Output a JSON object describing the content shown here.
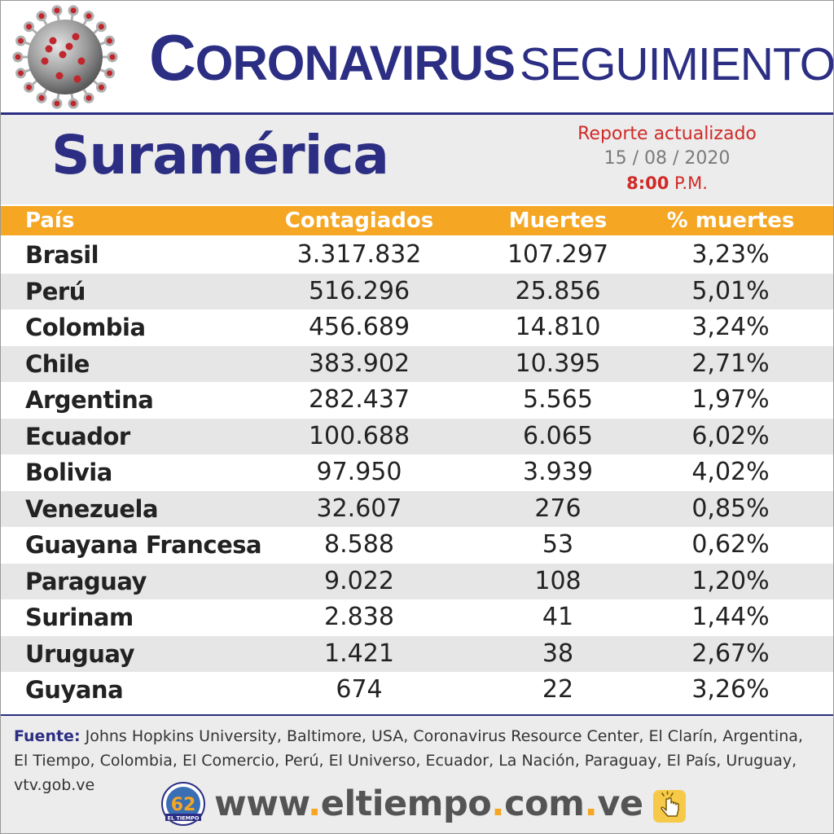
{
  "header": {
    "title_first_letter": "C",
    "title_rest": "ORONAVIRUS",
    "title_light": "SEGUIMIENTO",
    "virus_icon": "coronavirus-icon"
  },
  "subheader": {
    "region": "Suramérica",
    "report_label": "Reporte actualizado",
    "report_date": "15 / 08 / 2020",
    "report_time": "8:00",
    "report_ampm": "P.M."
  },
  "table": {
    "columns": [
      "País",
      "Contagiados",
      "Muertes",
      "% muertes"
    ],
    "rows": [
      {
        "country": "Brasil",
        "cases": "3.317.832",
        "deaths": "107.297",
        "pct": "3,23%"
      },
      {
        "country": "Perú",
        "cases": "516.296",
        "deaths": "25.856",
        "pct": "5,01%"
      },
      {
        "country": "Colombia",
        "cases": "456.689",
        "deaths": "14.810",
        "pct": "3,24%"
      },
      {
        "country": "Chile",
        "cases": "383.902",
        "deaths": "10.395",
        "pct": "2,71%"
      },
      {
        "country": "Argentina",
        "cases": "282.437",
        "deaths": "5.565",
        "pct": "1,97%"
      },
      {
        "country": "Ecuador",
        "cases": "100.688",
        "deaths": "6.065",
        "pct": "6,02%"
      },
      {
        "country": "Bolivia",
        "cases": "97.950",
        "deaths": "3.939",
        "pct": "4,02%"
      },
      {
        "country": "Venezuela",
        "cases": "32.607",
        "deaths": "276",
        "pct": "0,85%"
      },
      {
        "country": "Guayana Francesa",
        "cases": "8.588",
        "deaths": "53",
        "pct": "0,62%"
      },
      {
        "country": "Paraguay",
        "cases": "9.022",
        "deaths": "108",
        "pct": "1,20%"
      },
      {
        "country": "Surinam",
        "cases": "2.838",
        "deaths": "41",
        "pct": "1,44%"
      },
      {
        "country": "Uruguay",
        "cases": "1.421",
        "deaths": "38",
        "pct": "2,67%"
      },
      {
        "country": "Guyana",
        "cases": "674",
        "deaths": "22",
        "pct": "3,26%"
      }
    ]
  },
  "footer": {
    "source_label": "Fuente:",
    "source_text": "Johns Hopkins University, Baltimore, USA, Coronavirus Resource Center,  El Clarín, Argentina, El Tiempo, Colombia, El Comercio, Perú, El Universo, Ecuador, La Nación, Paraguay, El País, Uruguay, vtv.gob.ve",
    "url_www": "www",
    "url_domain": "eltiempo",
    "url_com": "com",
    "url_ve": "ve",
    "url_dot": ".",
    "logo_text": "EL TIEMPO",
    "logo_number": "62"
  },
  "colors": {
    "brand_blue": "#2b2e83",
    "header_orange": "#f5a623",
    "accent_red": "#cf2a27"
  }
}
